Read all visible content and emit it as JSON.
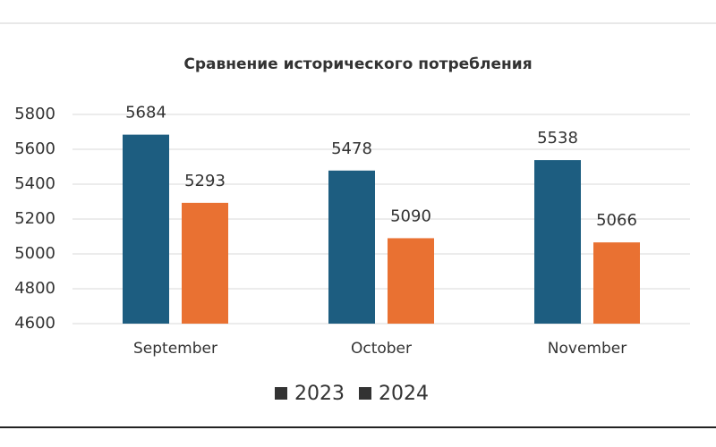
{
  "chart_data": {
    "type": "bar",
    "title": "Сравнение исторического потребления",
    "categories": [
      "September",
      "October",
      "November"
    ],
    "series": [
      {
        "name": "2023",
        "color": "#1d5d80",
        "values": [
          5684,
          5478,
          5538
        ]
      },
      {
        "name": "2024",
        "color": "#e97132",
        "values": [
          5293,
          5090,
          5066
        ]
      }
    ],
    "ylim": [
      4600,
      5800
    ],
    "yticks": [
      4600,
      4800,
      5000,
      5200,
      5400,
      5600,
      5800
    ],
    "grid": true,
    "legend": "bottom",
    "legend_marker_color": "#333333"
  }
}
